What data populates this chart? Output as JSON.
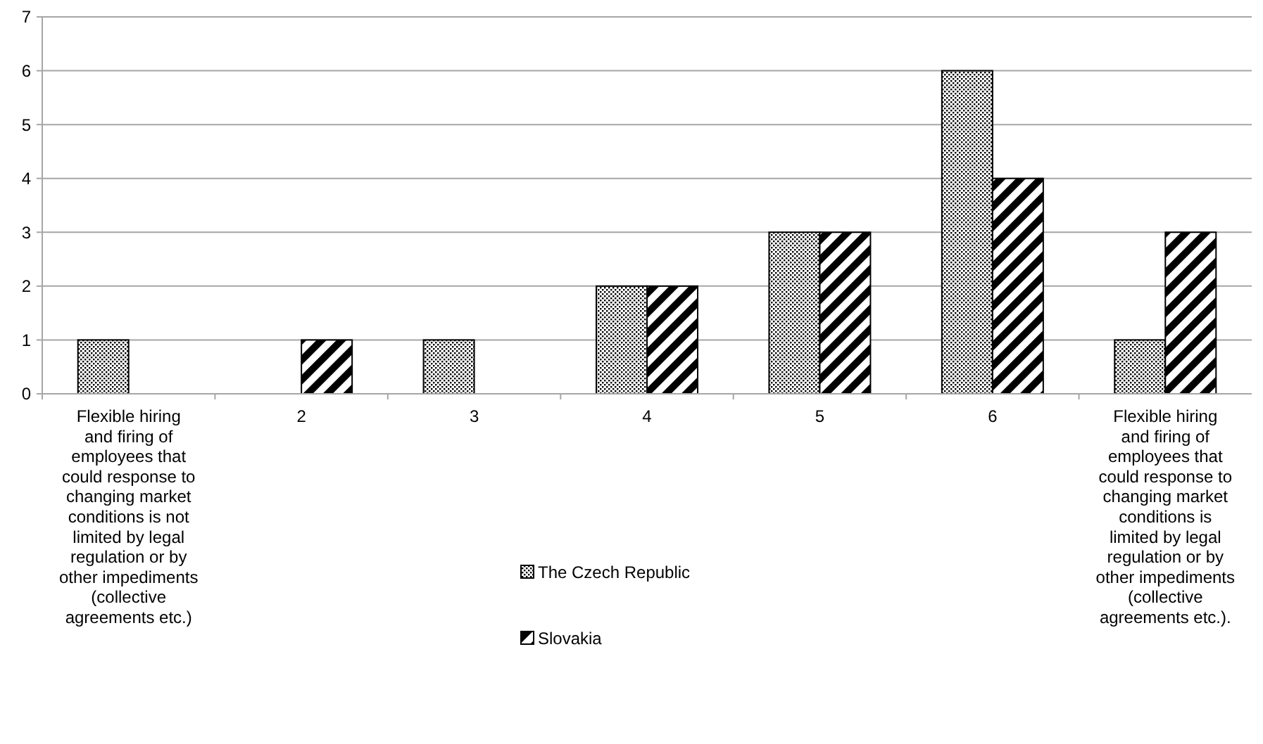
{
  "chart_data": {
    "type": "bar",
    "categories": [
      "Flexible hiring and firing of employees that could response to changing market conditions is not limited by legal regulation or by other impediments (collective agreements etc.)",
      "2",
      "3",
      "4",
      "5",
      "6",
      "Flexible hiring and firing of employees that could response to changing market conditions is limited by legal regulation or by other impediments (collective agreements etc.)."
    ],
    "series": [
      {
        "name": "The Czech Republic",
        "color": "#000000",
        "values": [
          1,
          0,
          1,
          2,
          3,
          6,
          1
        ]
      },
      {
        "name": "Slovakia",
        "color": "#000000",
        "values": [
          0,
          1,
          0,
          2,
          3,
          4,
          3
        ]
      }
    ],
    "ylim": [
      0,
      7
    ],
    "yticks": [
      0,
      1,
      2,
      3,
      4,
      5,
      6,
      7
    ],
    "grid": "y",
    "legend": "bottom"
  }
}
